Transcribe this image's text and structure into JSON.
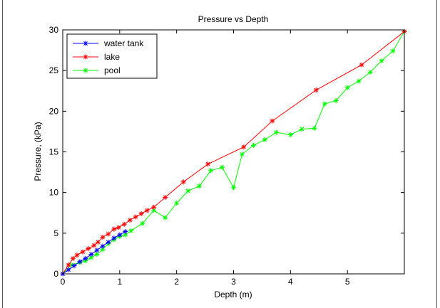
{
  "chart_data": {
    "type": "line",
    "title": "Pressure vs Depth",
    "xlabel": "Depth (m)",
    "ylabel": "Pressure, (kPa)",
    "xlim": [
      0,
      6
    ],
    "ylim": [
      0,
      30
    ],
    "xticks": [
      0,
      1,
      2,
      3,
      4,
      5
    ],
    "yticks": [
      0,
      5,
      10,
      15,
      20,
      25,
      30
    ],
    "grid": false,
    "legend_position": "top-left",
    "marker": "asterisk",
    "series": [
      {
        "name": "water tank",
        "color": "#0000ff",
        "x": [
          0,
          0.1,
          0.2,
          0.3,
          0.4,
          0.5,
          0.6,
          0.7,
          0.8,
          0.9,
          1.0,
          1.1
        ],
        "y": [
          0,
          0.5,
          1.0,
          1.5,
          1.9,
          2.4,
          2.9,
          3.4,
          3.9,
          4.4,
          4.8,
          5.2
        ]
      },
      {
        "name": "lake",
        "color": "#ff0000",
        "x": [
          0,
          0.1,
          0.18,
          0.25,
          0.35,
          0.45,
          0.55,
          0.62,
          0.7,
          0.8,
          0.9,
          0.98,
          1.08,
          1.18,
          1.28,
          1.38,
          1.48,
          1.6,
          1.8,
          2.12,
          2.55,
          3.18,
          3.68,
          4.45,
          5.25,
          6.0
        ],
        "y": [
          0,
          1.1,
          1.9,
          2.3,
          2.7,
          3.1,
          3.5,
          3.9,
          4.5,
          4.9,
          5.5,
          5.7,
          6.1,
          6.6,
          7.0,
          7.4,
          7.8,
          8.2,
          9.4,
          11.3,
          13.5,
          15.6,
          18.8,
          22.6,
          25.7,
          29.8
        ]
      },
      {
        "name": "pool",
        "color": "#00ff00",
        "x": [
          0,
          0.15,
          0.3,
          0.4,
          0.5,
          0.6,
          0.7,
          0.8,
          0.9,
          1.0,
          1.1,
          1.2,
          1.4,
          1.6,
          1.8,
          2.0,
          2.2,
          2.4,
          2.6,
          2.8,
          3.0,
          3.15,
          3.35,
          3.55,
          3.75,
          4.0,
          4.2,
          4.42,
          4.6,
          4.8,
          5.0,
          5.2,
          5.4,
          5.6,
          5.8,
          6.0
        ],
        "y": [
          0,
          1.1,
          1.4,
          1.6,
          2.0,
          2.4,
          3.0,
          3.7,
          4.2,
          4.6,
          4.8,
          5.3,
          6.2,
          7.8,
          6.9,
          8.7,
          10.2,
          10.8,
          12.7,
          13.1,
          10.6,
          14.7,
          15.8,
          16.5,
          17.4,
          17.1,
          17.8,
          17.9,
          20.9,
          21.3,
          22.9,
          23.7,
          24.8,
          26.2,
          27.4,
          29.8
        ]
      }
    ]
  }
}
